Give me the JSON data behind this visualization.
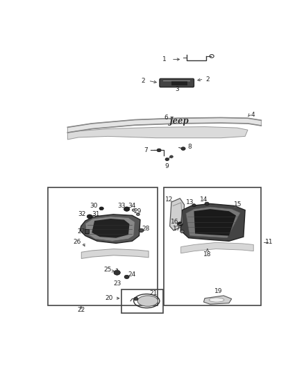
{
  "bg_color": "#ffffff",
  "line_color": "#333333",
  "label_color": "#222222",
  "fig_width": 4.38,
  "fig_height": 5.33,
  "dpi": 100
}
